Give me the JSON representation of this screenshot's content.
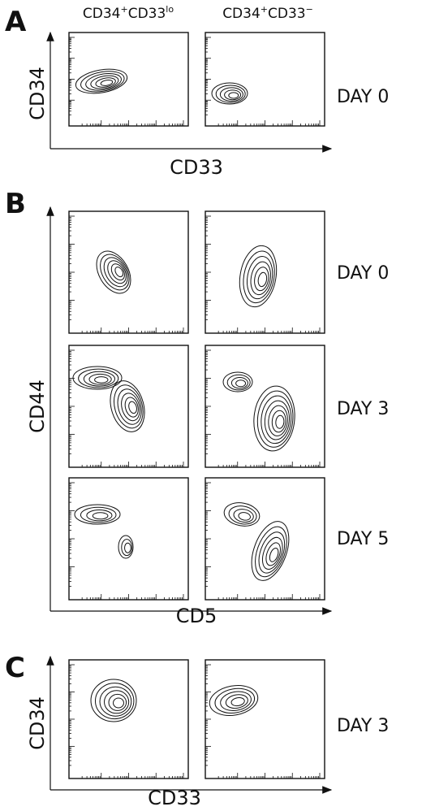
{
  "panels": [
    {
      "letter": "A",
      "columns": [
        {
          "parts": [
            "CD34",
            "+",
            "CD33",
            "lo"
          ]
        },
        {
          "parts": [
            "CD34",
            "+",
            "CD33",
            "−"
          ]
        }
      ],
      "y_label": "CD34",
      "x_label": "CD33",
      "rows": [
        "DAY 0"
      ]
    },
    {
      "letter": "B",
      "y_label": "CD44",
      "x_label": "CD5",
      "rows": [
        "DAY 0",
        "DAY 3",
        "DAY 5"
      ]
    },
    {
      "letter": "C",
      "y_label": "CD34",
      "x_label": "CD33",
      "rows": [
        "DAY 3"
      ]
    }
  ]
}
